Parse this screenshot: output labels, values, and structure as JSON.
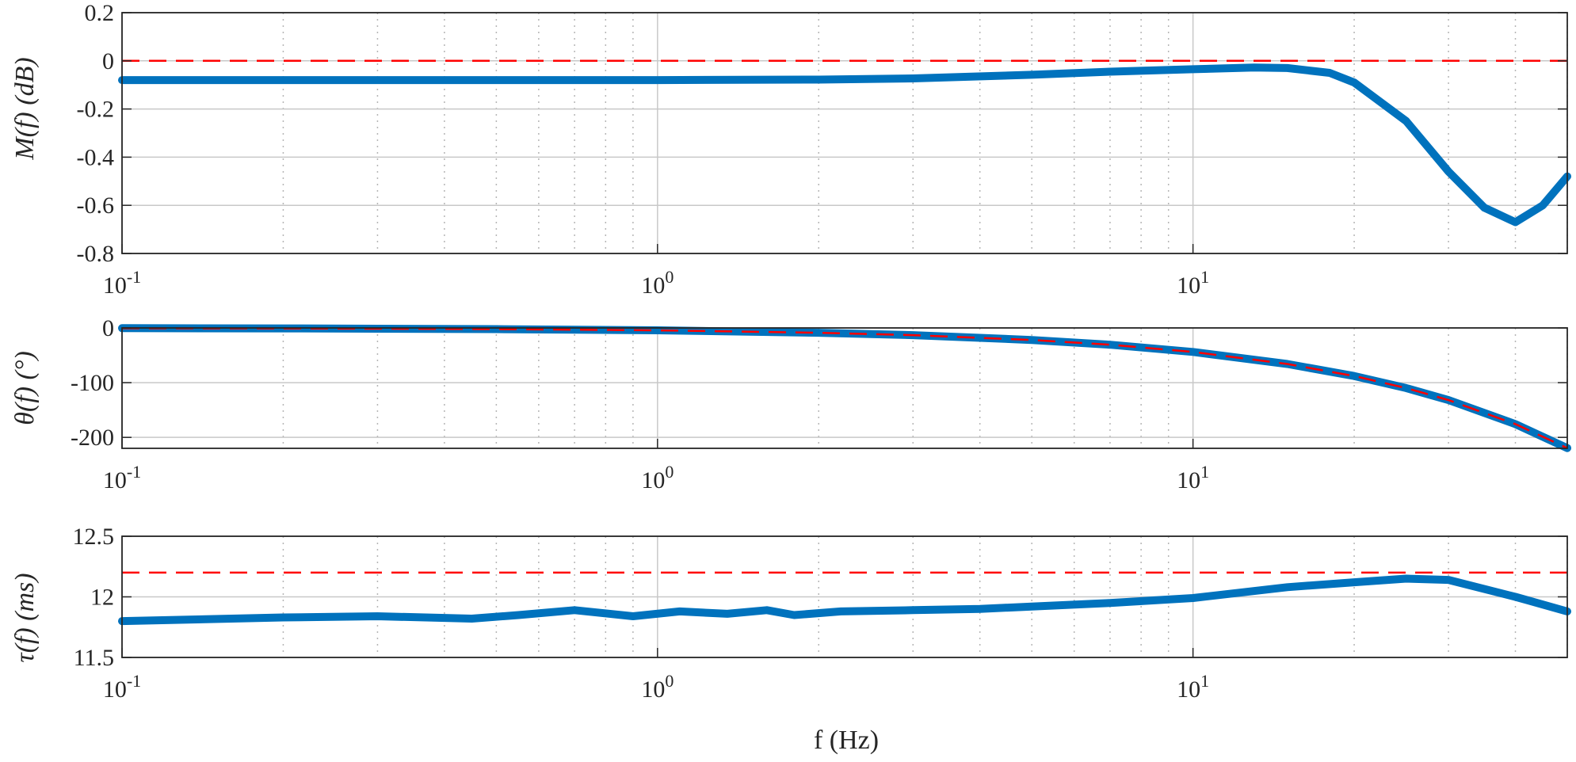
{
  "figure": {
    "xlabel": "f (Hz)",
    "colors": {
      "measured": "#0072BD",
      "reference": "#FF0000",
      "grid": "#c8c8c8",
      "axes": "#262626"
    }
  },
  "chart_data": [
    {
      "type": "line",
      "ylabel": "M(f) (dB)",
      "xscale": "log",
      "xlim": [
        0.1,
        50
      ],
      "ylim": [
        -0.8,
        0.2
      ],
      "yticks": [
        "0.2",
        "0",
        "-0.2",
        "-0.4",
        "-0.6",
        "-0.8"
      ],
      "xticks": [
        "10^-1",
        "10^0",
        "10^1"
      ],
      "grid": true,
      "series": [
        {
          "style": "solid-thick-blue",
          "x": [
            0.1,
            0.2,
            0.5,
            1,
            2,
            3,
            5,
            7,
            10,
            13,
            15,
            18,
            20,
            25,
            30,
            35,
            40,
            45,
            50
          ],
          "values": [
            -0.08,
            -0.08,
            -0.08,
            -0.08,
            -0.078,
            -0.073,
            -0.058,
            -0.045,
            -0.035,
            -0.028,
            -0.03,
            -0.05,
            -0.09,
            -0.25,
            -0.46,
            -0.61,
            -0.67,
            -0.6,
            -0.48
          ]
        },
        {
          "style": "dashed-red",
          "x": [
            0.1,
            50
          ],
          "values": [
            0,
            0
          ]
        }
      ]
    },
    {
      "type": "line",
      "ylabel": "θ(f) (°)",
      "xscale": "log",
      "xlim": [
        0.1,
        50
      ],
      "ylim": [
        -220,
        0
      ],
      "yticks": [
        "0",
        "-100",
        "-200"
      ],
      "xticks": [
        "10^-1",
        "10^0",
        "10^1"
      ],
      "grid": true,
      "series": [
        {
          "style": "solid-thick-blue",
          "x": [
            0.1,
            0.2,
            0.5,
            1,
            2,
            3,
            5,
            7,
            10,
            15,
            20,
            25,
            30,
            40,
            50
          ],
          "values": [
            -0.4,
            -0.9,
            -2.2,
            -4.4,
            -8.8,
            -13.2,
            -22,
            -30.7,
            -43.9,
            -65.9,
            -87.8,
            -109.8,
            -131.8,
            -175.7,
            -219.6
          ]
        },
        {
          "style": "dashed-red",
          "x": [
            0.1,
            0.2,
            0.5,
            1,
            2,
            3,
            5,
            7,
            10,
            15,
            20,
            25,
            30,
            40,
            50
          ],
          "values": [
            -0.4,
            -0.9,
            -2.2,
            -4.4,
            -8.8,
            -13.2,
            -22,
            -30.7,
            -43.9,
            -65.9,
            -87.8,
            -109.8,
            -131.8,
            -175.7,
            -219.6
          ]
        }
      ]
    },
    {
      "type": "line",
      "ylabel": "τ(f) (ms)",
      "xscale": "log",
      "xlim": [
        0.1,
        50
      ],
      "ylim": [
        11.5,
        12.5
      ],
      "yticks": [
        "12.5",
        "12",
        "11.5"
      ],
      "xticks": [
        "10^-1",
        "10^0",
        "10^1"
      ],
      "grid": true,
      "series": [
        {
          "style": "solid-thick-blue",
          "x": [
            0.1,
            0.2,
            0.3,
            0.45,
            0.55,
            0.7,
            0.9,
            1.1,
            1.35,
            1.6,
            1.8,
            2.2,
            3,
            4,
            5,
            7,
            10,
            15,
            20,
            25,
            30,
            40,
            50
          ],
          "values": [
            11.8,
            11.83,
            11.84,
            11.82,
            11.85,
            11.89,
            11.84,
            11.88,
            11.86,
            11.89,
            11.85,
            11.88,
            11.89,
            11.9,
            11.92,
            11.95,
            11.99,
            12.08,
            12.12,
            12.15,
            12.14,
            12.0,
            11.88
          ]
        },
        {
          "style": "dashed-red",
          "x": [
            0.1,
            50
          ],
          "values": [
            12.2,
            12.2
          ]
        }
      ]
    }
  ]
}
